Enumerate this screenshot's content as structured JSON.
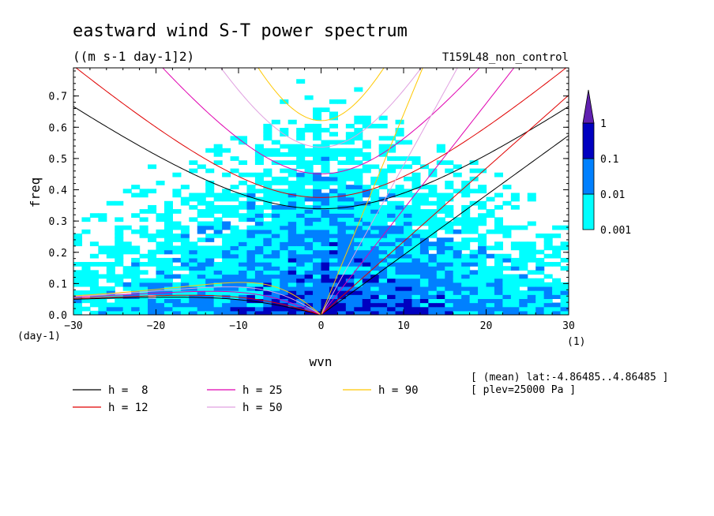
{
  "chart_data": {
    "type": "heatmap",
    "title": "eastward wind S-T power spectrum",
    "subtitle": "((m s-1 day-1]2)",
    "run_label": "T159L48_non_control",
    "xlabel": "wvn",
    "ylabel": "freq",
    "x_unit": "(1)",
    "y_unit": "(day-1)",
    "xlim": [
      -30,
      30
    ],
    "ylim": [
      0,
      0.79
    ],
    "xticks": [
      "-30",
      "-20",
      "-10",
      "0",
      "10",
      "20",
      "30"
    ],
    "yticks": [
      "0.0",
      "0.1",
      "0.2",
      "0.3",
      "0.4",
      "0.5",
      "0.6",
      "0.7"
    ],
    "colorbar": {
      "levels": [
        "0.001",
        "0.01",
        "0.1",
        "1"
      ],
      "colors": [
        "#00ffff",
        "#0080ff",
        "#0000c0",
        "#6020b0"
      ]
    },
    "dispersion_curves": [
      {
        "label": "h =  8",
        "h": 8,
        "color": "#000000"
      },
      {
        "label": "h = 12",
        "h": 12,
        "color": "#e00000"
      },
      {
        "label": "h = 25",
        "h": 25,
        "color": "#e000b0"
      },
      {
        "label": "h = 50",
        "h": 50,
        "color": "#e0a0e0"
      },
      {
        "label": "h = 90",
        "h": 90,
        "color": "#ffc800"
      }
    ],
    "annotations": [
      "[ (mean) lat:-4.86485..4.86485 ]",
      "[ plev=25000 Pa ]"
    ]
  }
}
